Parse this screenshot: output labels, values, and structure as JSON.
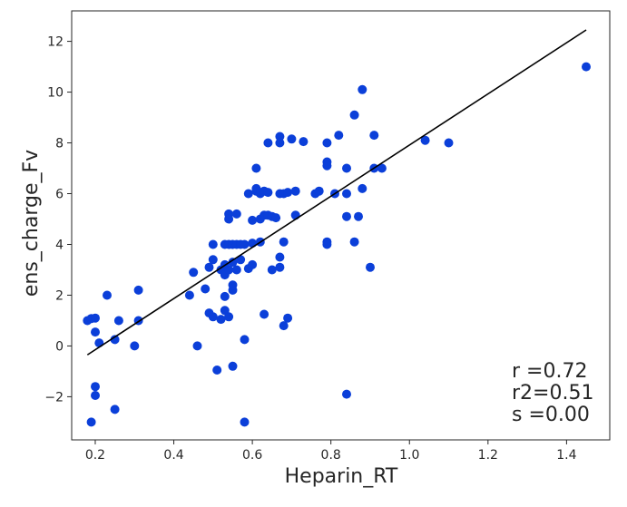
{
  "chart_data": {
    "type": "scatter",
    "title": "",
    "xlabel": "Heparin_RT",
    "ylabel": "ens_charge_Fv",
    "xlim": [
      0.14,
      1.51
    ],
    "ylim": [
      -3.7,
      13.2
    ],
    "xticks": [
      0.2,
      0.4,
      0.6,
      0.8,
      1.0,
      1.2,
      1.4
    ],
    "xtick_labels": [
      "0.2",
      "0.4",
      "0.6",
      "0.8",
      "1.0",
      "1.2",
      "1.4"
    ],
    "yticks": [
      -2,
      0,
      2,
      4,
      6,
      8,
      10,
      12
    ],
    "ytick_labels": [
      "−2",
      "0",
      "2",
      "4",
      "6",
      "8",
      "10",
      "12"
    ],
    "grid": false,
    "legend": false,
    "point_color": "#0b3fd9",
    "line_color": "#000000",
    "fit_line": {
      "x": [
        0.18,
        1.45
      ],
      "y": [
        -0.35,
        12.45
      ]
    },
    "annotations": [
      "r =0.72",
      "r2=0.51",
      "s =0.00"
    ],
    "points": [
      [
        0.18,
        1.0
      ],
      [
        0.19,
        1.08
      ],
      [
        0.2,
        1.1
      ],
      [
        0.2,
        0.55
      ],
      [
        0.21,
        0.12
      ],
      [
        0.23,
        2.0
      ],
      [
        0.19,
        -3.0
      ],
      [
        0.2,
        -1.6
      ],
      [
        0.2,
        -1.95
      ],
      [
        0.25,
        0.25
      ],
      [
        0.25,
        -2.5
      ],
      [
        0.26,
        1.0
      ],
      [
        0.3,
        0.0
      ],
      [
        0.31,
        2.2
      ],
      [
        0.31,
        1.0
      ],
      [
        0.44,
        2.0
      ],
      [
        0.45,
        2.9
      ],
      [
        0.46,
        0.0
      ],
      [
        0.48,
        2.25
      ],
      [
        0.49,
        3.1
      ],
      [
        0.49,
        1.3
      ],
      [
        0.5,
        4.0
      ],
      [
        0.5,
        3.4
      ],
      [
        0.5,
        1.15
      ],
      [
        0.51,
        -0.95
      ],
      [
        0.52,
        3.0
      ],
      [
        0.52,
        1.05
      ],
      [
        0.53,
        4.0
      ],
      [
        0.53,
        3.2
      ],
      [
        0.53,
        2.8
      ],
      [
        0.53,
        1.95
      ],
      [
        0.53,
        1.4
      ],
      [
        0.54,
        5.2
      ],
      [
        0.54,
        5.0
      ],
      [
        0.54,
        4.0
      ],
      [
        0.54,
        3.0
      ],
      [
        0.54,
        1.15
      ],
      [
        0.55,
        4.0
      ],
      [
        0.55,
        3.3
      ],
      [
        0.55,
        2.2
      ],
      [
        0.55,
        2.4
      ],
      [
        0.55,
        -0.8
      ],
      [
        0.56,
        5.2
      ],
      [
        0.56,
        4.0
      ],
      [
        0.56,
        3.0
      ],
      [
        0.57,
        3.4
      ],
      [
        0.57,
        4.0
      ],
      [
        0.58,
        0.25
      ],
      [
        0.58,
        -3.0
      ],
      [
        0.58,
        4.0
      ],
      [
        0.59,
        6.0
      ],
      [
        0.59,
        3.05
      ],
      [
        0.6,
        4.05
      ],
      [
        0.6,
        3.2
      ],
      [
        0.6,
        4.95
      ],
      [
        0.61,
        7.0
      ],
      [
        0.61,
        6.1
      ],
      [
        0.61,
        6.2
      ],
      [
        0.62,
        6.0
      ],
      [
        0.62,
        5.0
      ],
      [
        0.62,
        4.1
      ],
      [
        0.63,
        6.1
      ],
      [
        0.63,
        5.15
      ],
      [
        0.63,
        1.25
      ],
      [
        0.64,
        8.0
      ],
      [
        0.64,
        6.05
      ],
      [
        0.64,
        5.15
      ],
      [
        0.65,
        5.1
      ],
      [
        0.65,
        3.0
      ],
      [
        0.66,
        5.05
      ],
      [
        0.67,
        8.25
      ],
      [
        0.67,
        8.0
      ],
      [
        0.67,
        6.0
      ],
      [
        0.67,
        3.5
      ],
      [
        0.67,
        3.1
      ],
      [
        0.68,
        4.1
      ],
      [
        0.68,
        0.8
      ],
      [
        0.68,
        6.0
      ],
      [
        0.69,
        1.1
      ],
      [
        0.69,
        6.05
      ],
      [
        0.7,
        8.15
      ],
      [
        0.71,
        6.1
      ],
      [
        0.71,
        5.15
      ],
      [
        0.73,
        8.05
      ],
      [
        0.76,
        6.0
      ],
      [
        0.77,
        6.1
      ],
      [
        0.79,
        8.0
      ],
      [
        0.79,
        7.25
      ],
      [
        0.79,
        7.1
      ],
      [
        0.79,
        4.1
      ],
      [
        0.79,
        4.0
      ],
      [
        0.81,
        6.0
      ],
      [
        0.82,
        8.3
      ],
      [
        0.84,
        7.0
      ],
      [
        0.84,
        6.0
      ],
      [
        0.84,
        5.1
      ],
      [
        0.84,
        -1.9
      ],
      [
        0.86,
        9.1
      ],
      [
        0.86,
        4.1
      ],
      [
        0.87,
        5.1
      ],
      [
        0.88,
        10.1
      ],
      [
        0.88,
        6.2
      ],
      [
        0.9,
        3.1
      ],
      [
        0.91,
        8.3
      ],
      [
        0.91,
        7.0
      ],
      [
        0.93,
        7.0
      ],
      [
        1.04,
        8.1
      ],
      [
        1.1,
        8.0
      ],
      [
        1.45,
        11.0
      ]
    ]
  }
}
